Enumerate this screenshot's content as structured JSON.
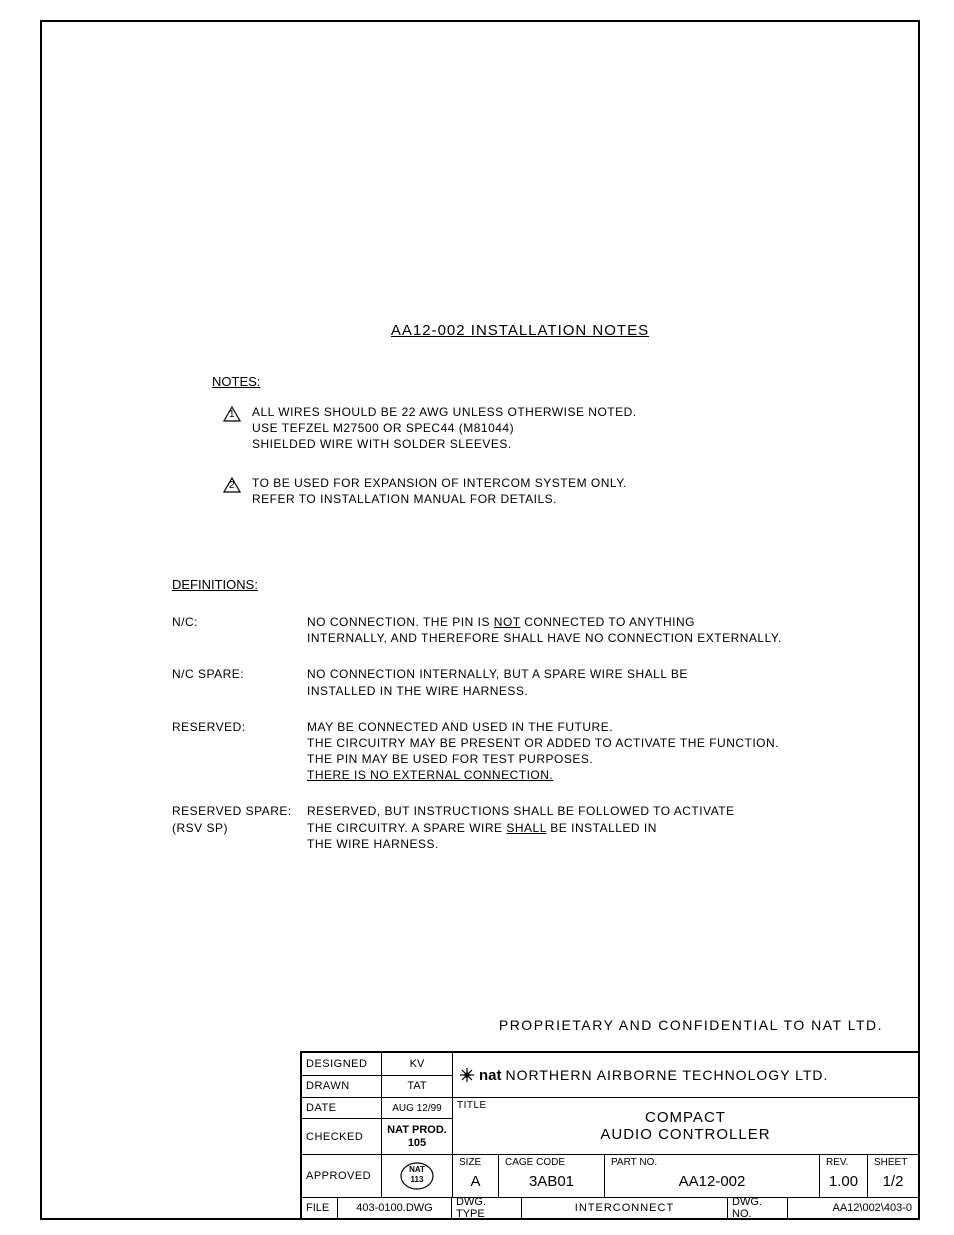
{
  "document": {
    "title": "AA12-002 INSTALLATION NOTES",
    "notes_heading": "NOTES:",
    "notes": [
      {
        "num": "1",
        "text_html": "ALL WIRES SHOULD BE 22 AWG UNLESS OTHERWISE NOTED.<br>USE TEFZEL M27500 OR SPEC44 (M81044)<br>SHIELDED WIRE WITH SOLDER SLEEVES."
      },
      {
        "num": "2",
        "text_html": "TO BE USED FOR EXPANSION OF INTERCOM SYSTEM ONLY.<br>REFER TO INSTALLATION MANUAL FOR DETAILS."
      }
    ],
    "definitions_heading": "DEFINITIONS:",
    "definitions": [
      {
        "term": "N/C:",
        "text_html": "NO CONNECTION. THE PIN IS <span class=\"u\">NOT</span> CONNECTED TO ANYTHING<br>INTERNALLY, AND THEREFORE SHALL HAVE NO CONNECTION EXTERNALLY."
      },
      {
        "term": "N/C SPARE:",
        "text_html": "NO CONNECTION INTERNALLY, BUT A SPARE WIRE SHALL BE<br>INSTALLED IN THE WIRE HARNESS."
      },
      {
        "term": "RESERVED:",
        "text_html": "MAY BE CONNECTED AND USED IN THE FUTURE.<br>THE CIRCUITRY MAY BE PRESENT OR ADDED TO ACTIVATE THE FUNCTION.<br>THE PIN MAY BE USED FOR TEST PURPOSES.<br><span class=\"u\">THERE IS NO EXTERNAL CONNECTION.</span>"
      },
      {
        "term": "RESERVED SPARE:<br>(RSV SP)",
        "text_html": "RESERVED, BUT INSTRUCTIONS SHALL BE FOLLOWED TO ACTIVATE<br>THE CIRCUITRY. A SPARE WIRE <span class=\"u\">SHALL</span> BE INSTALLED IN<br>THE WIRE HARNESS."
      }
    ]
  },
  "proprietary": "PROPRIETARY AND CONFIDENTIAL TO NAT LTD.",
  "titleblock": {
    "designed_label": "DESIGNED",
    "designed": "KV",
    "drawn_label": "DRAWN",
    "drawn": "TAT",
    "date_label": "DATE",
    "date": "AUG 12/99",
    "checked_label": "CHECKED",
    "checked_line1": "NAT PROD.",
    "checked_line2": "105",
    "approved_label": "APPROVED",
    "approved_stamp_top": "NAT",
    "approved_stamp_bottom": "113",
    "company_logo_text": "nat",
    "company": "NORTHERN AIRBORNE TECHNOLOGY LTD.",
    "title_label": "TITLE",
    "title_line1": "COMPACT",
    "title_line2": "AUDIO CONTROLLER",
    "size_label": "SIZE",
    "size": "A",
    "cage_label": "CAGE CODE",
    "cage": "3AB01",
    "partno_label": "PART NO.",
    "partno": "AA12-002",
    "rev_label": "REV.",
    "rev": "1.00",
    "sheet_label": "SHEET",
    "sheet": "1/2",
    "file_label": "FILE",
    "file": "403-0100.DWG",
    "dwgtype_label": "DWG. TYPE",
    "dwgtype": "INTERCONNECT",
    "dwgno_label": "DWG. NO.",
    "dwgno": "AA12\\002\\403-0"
  }
}
